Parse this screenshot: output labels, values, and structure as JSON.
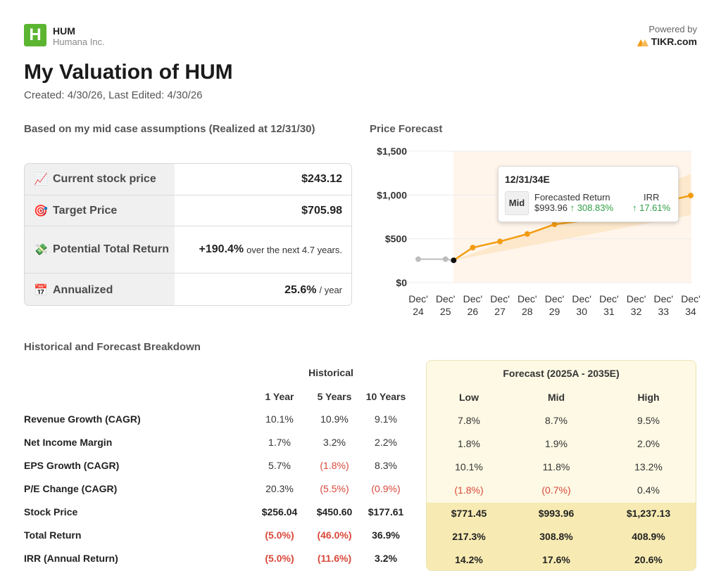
{
  "header": {
    "logo_letter": "H",
    "ticker": "HUM",
    "company": "Humana Inc.",
    "powered_by": "Powered by",
    "brand": "TIKR.com",
    "title": "My Valuation of HUM",
    "subtitle": "Created: 4/30/26, Last Edited: 4/30/26"
  },
  "summary": {
    "heading": "Based on my mid case assumptions (Realized at 12/31/30)",
    "rows": [
      {
        "icon": "chart-increasing-icon",
        "emoji": "📈",
        "label": "Current stock price",
        "value": "$243.12",
        "suffix": ""
      },
      {
        "icon": "target-icon",
        "emoji": "🎯",
        "label": "Target Price",
        "value": "$705.98",
        "suffix": ""
      },
      {
        "icon": "money-wings-icon",
        "emoji": "💸",
        "label": "Potential Total Return",
        "value": "+190.4%",
        "suffix": "over the next 4.7 years."
      },
      {
        "icon": "calendar-icon",
        "emoji": "📅",
        "label": "Annualized",
        "value": "25.6%",
        "suffix": "/ year"
      }
    ]
  },
  "price_forecast": {
    "heading": "Price Forecast",
    "tooltip": {
      "date": "12/31/34E",
      "case": "Mid",
      "forecasted_return_label": "Forecasted Return",
      "forecasted_price": "$993.96",
      "forecasted_return": "↑ 308.83%",
      "irr_label": "IRR",
      "irr_value": "↑ 17.61%"
    }
  },
  "chart_data": {
    "type": "line",
    "title": "Price Forecast",
    "categories": [
      "Dec' 24",
      "Dec' 25",
      "Dec' 26",
      "Dec' 27",
      "Dec' 28",
      "Dec' 29",
      "Dec' 30",
      "Dec' 31",
      "Dec' 32",
      "Dec' 33",
      "Dec' 34"
    ],
    "ylim": [
      0,
      1500
    ],
    "yticks": [
      "$0",
      "$500",
      "$1,000",
      "$1,500"
    ],
    "grid": true,
    "colors": {
      "historical": "#bdbdbd",
      "forecast": "#f39c12",
      "band": "#fde5c6",
      "shade": "#fff5eb"
    },
    "series": [
      {
        "name": "Historical",
        "points": [
          [
            0,
            268
          ],
          [
            1,
            268
          ],
          [
            1.3,
            255
          ]
        ]
      },
      {
        "name": "Mid Forecast",
        "points": [
          [
            1.3,
            255
          ],
          [
            2,
            400
          ],
          [
            3,
            470
          ],
          [
            4,
            555
          ],
          [
            5,
            665
          ],
          [
            6,
            705
          ],
          [
            10,
            994
          ]
        ]
      }
    ],
    "band": {
      "low": [
        [
          1.3,
          255
        ],
        [
          10,
          771
        ]
      ],
      "high": [
        [
          1.3,
          255
        ],
        [
          10,
          1237
        ]
      ]
    }
  },
  "breakdown": {
    "heading": "Historical and Forecast Breakdown",
    "historical_header": "Historical",
    "forecast_header": "Forecast (2025A - 2035E)",
    "columns": [
      "1 Year",
      "5 Years",
      "10 Years",
      "Low",
      "Mid",
      "High"
    ],
    "rows": [
      {
        "label": "Revenue Growth (CAGR)",
        "values": [
          "10.1%",
          "10.9%",
          "9.1%",
          "7.8%",
          "8.7%",
          "9.5%"
        ],
        "neg": [
          false,
          false,
          false,
          false,
          false,
          false
        ],
        "bold": false
      },
      {
        "label": "Net Income Margin",
        "values": [
          "1.7%",
          "3.2%",
          "2.2%",
          "1.8%",
          "1.9%",
          "2.0%"
        ],
        "neg": [
          false,
          false,
          false,
          false,
          false,
          false
        ],
        "bold": false
      },
      {
        "label": "EPS Growth (CAGR)",
        "values": [
          "5.7%",
          "(1.8%)",
          "8.3%",
          "10.1%",
          "11.8%",
          "13.2%"
        ],
        "neg": [
          false,
          true,
          false,
          false,
          false,
          false
        ],
        "bold": false
      },
      {
        "label": "P/E Change (CAGR)",
        "values": [
          "20.3%",
          "(5.5%)",
          "(0.9%)",
          "(1.8%)",
          "(0.7%)",
          "0.4%"
        ],
        "neg": [
          false,
          true,
          true,
          true,
          true,
          false
        ],
        "bold": false
      },
      {
        "label": "Stock Price",
        "values": [
          "$256.04",
          "$450.60",
          "$177.61",
          "$771.45",
          "$993.96",
          "$1,237.13"
        ],
        "neg": [
          false,
          false,
          false,
          false,
          false,
          false
        ],
        "bold": true
      },
      {
        "label": "Total Return",
        "values": [
          "(5.0%)",
          "(46.0%)",
          "36.9%",
          "217.3%",
          "308.8%",
          "408.9%"
        ],
        "neg": [
          true,
          true,
          false,
          false,
          false,
          false
        ],
        "bold": true
      },
      {
        "label": "IRR (Annual Return)",
        "values": [
          "(5.0%)",
          "(11.6%)",
          "3.2%",
          "14.2%",
          "17.6%",
          "20.6%"
        ],
        "neg": [
          true,
          true,
          false,
          false,
          false,
          false
        ],
        "bold": true
      }
    ]
  }
}
